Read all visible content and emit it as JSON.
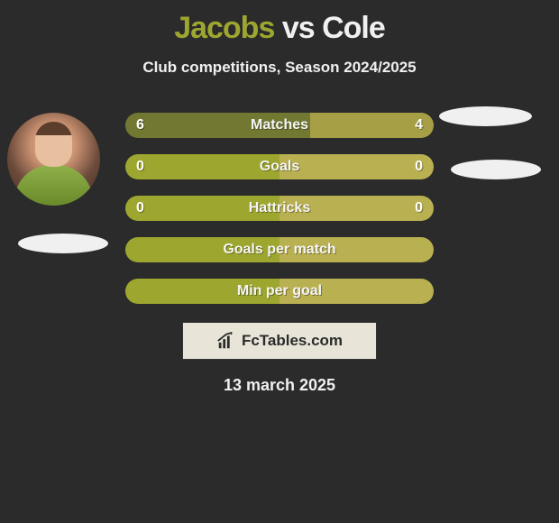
{
  "title": {
    "left": "Jacobs",
    "vs": "vs",
    "right": "Cole",
    "left_color": "#9da62e",
    "vs_color": "#f0f0f0",
    "right_color": "#f0f0f0",
    "fontsize": 34
  },
  "subtitle": "Club competitions, Season 2024/2025",
  "date": "13 march 2025",
  "logo": {
    "icon_name": "chart-line-icon",
    "text": "FcTables.com",
    "bg_color": "#e8e5d8",
    "text_color": "#2a2a2a"
  },
  "colors": {
    "background": "#2b2b2b",
    "left_accent": "#9da62e",
    "right_accent": "#b9b051",
    "bar_text": "#f5f5f5",
    "bar_radius": 14,
    "jersey_left": "#f0f0f0",
    "jersey_right": "#f0f0f0"
  },
  "bars": [
    {
      "label": "Matches",
      "left_value": "6",
      "right_value": "4",
      "left_pct": 60,
      "right_pct": 40,
      "left_color": "#727832",
      "right_color": "#a79f46"
    },
    {
      "label": "Goals",
      "left_value": "0",
      "right_value": "0",
      "left_pct": 50,
      "right_pct": 50,
      "left_color": "#9da62e",
      "right_color": "#b9b051"
    },
    {
      "label": "Hattricks",
      "left_value": "0",
      "right_value": "0",
      "left_pct": 50,
      "right_pct": 50,
      "left_color": "#9da62e",
      "right_color": "#b9b051"
    },
    {
      "label": "Goals per match",
      "left_value": "",
      "right_value": "",
      "left_pct": 50,
      "right_pct": 50,
      "left_color": "#9da62e",
      "right_color": "#b9b051"
    },
    {
      "label": "Min per goal",
      "left_value": "",
      "right_value": "",
      "left_pct": 50,
      "right_pct": 50,
      "left_color": "#9da62e",
      "right_color": "#b9b051"
    }
  ]
}
